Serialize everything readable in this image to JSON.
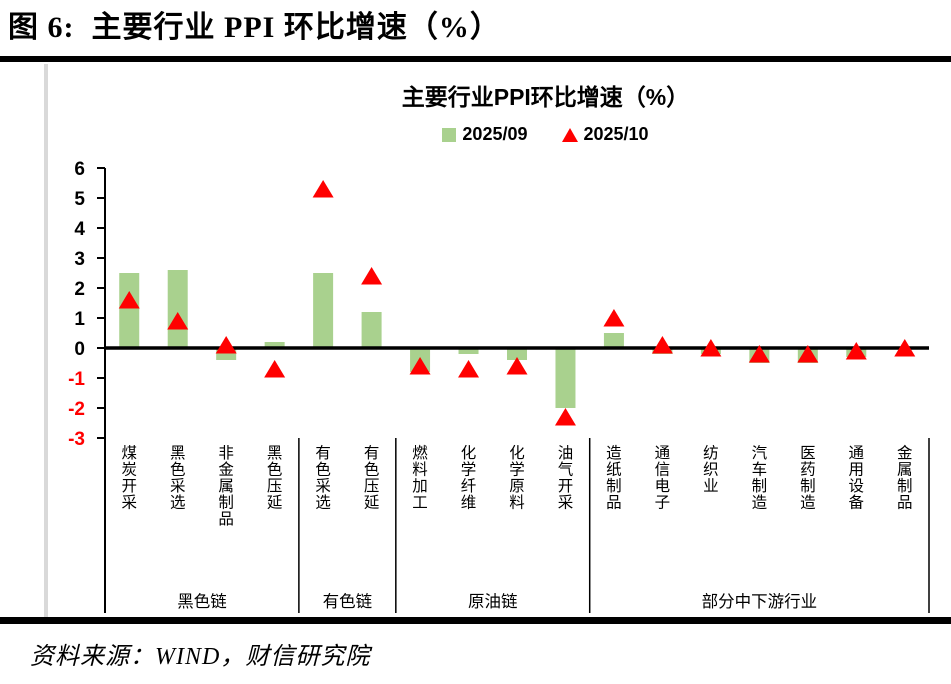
{
  "figure": {
    "title": "图 6:  主要行业 PPI 环比增速（%）",
    "source": "资料来源：WIND，财信研究院"
  },
  "chart": {
    "title": "主要行业PPI环比增速（%）",
    "legend": [
      {
        "label": "2025/09",
        "marker": "square",
        "color": "#a9d18e"
      },
      {
        "label": "2025/10",
        "marker": "triangle",
        "color": "#ff0000"
      }
    ]
  },
  "chart_data": {
    "type": "bar",
    "title": "主要行业PPI环比增速（%）",
    "xlabel": "",
    "ylabel": "",
    "ylim": [
      -3,
      6
    ],
    "yticks": [
      6,
      5,
      4,
      3,
      2,
      1,
      0,
      -1,
      -2,
      -3
    ],
    "grid": false,
    "legend_position": "top",
    "negative_tick_color": "#ff0000",
    "categories": [
      "煤炭开采",
      "黑色采选",
      "非金属制品",
      "黑色压延",
      "有色采选",
      "有色压延",
      "燃料加工",
      "化学纤维",
      "化学原料",
      "油气开采",
      "造纸制品",
      "通信电子",
      "纺织业",
      "汽车制造",
      "医药制造",
      "通用设备",
      "金属制品"
    ],
    "groups": [
      {
        "label": "黑色链",
        "start": 0,
        "end": 3
      },
      {
        "label": "有色链",
        "start": 4,
        "end": 5
      },
      {
        "label": "原油链",
        "start": 6,
        "end": 9
      },
      {
        "label": "部分中下游行业",
        "start": 10,
        "end": 16
      }
    ],
    "series": [
      {
        "name": "2025/09",
        "type": "bar",
        "color": "#a9d18e",
        "values": [
          2.5,
          2.6,
          -0.4,
          0.2,
          2.5,
          1.2,
          -0.8,
          -0.2,
          -0.4,
          -2.0,
          0.5,
          -0.2,
          -0.2,
          -0.5,
          -0.5,
          -0.3,
          0.0
        ]
      },
      {
        "name": "2025/10",
        "type": "scatter-triangle",
        "color": "#ff0000",
        "values": [
          1.6,
          0.9,
          0.1,
          -0.7,
          5.3,
          2.4,
          -0.6,
          -0.7,
          -0.6,
          -2.3,
          1.0,
          0.1,
          0.0,
          -0.2,
          -0.2,
          -0.1,
          0.0
        ]
      }
    ]
  }
}
